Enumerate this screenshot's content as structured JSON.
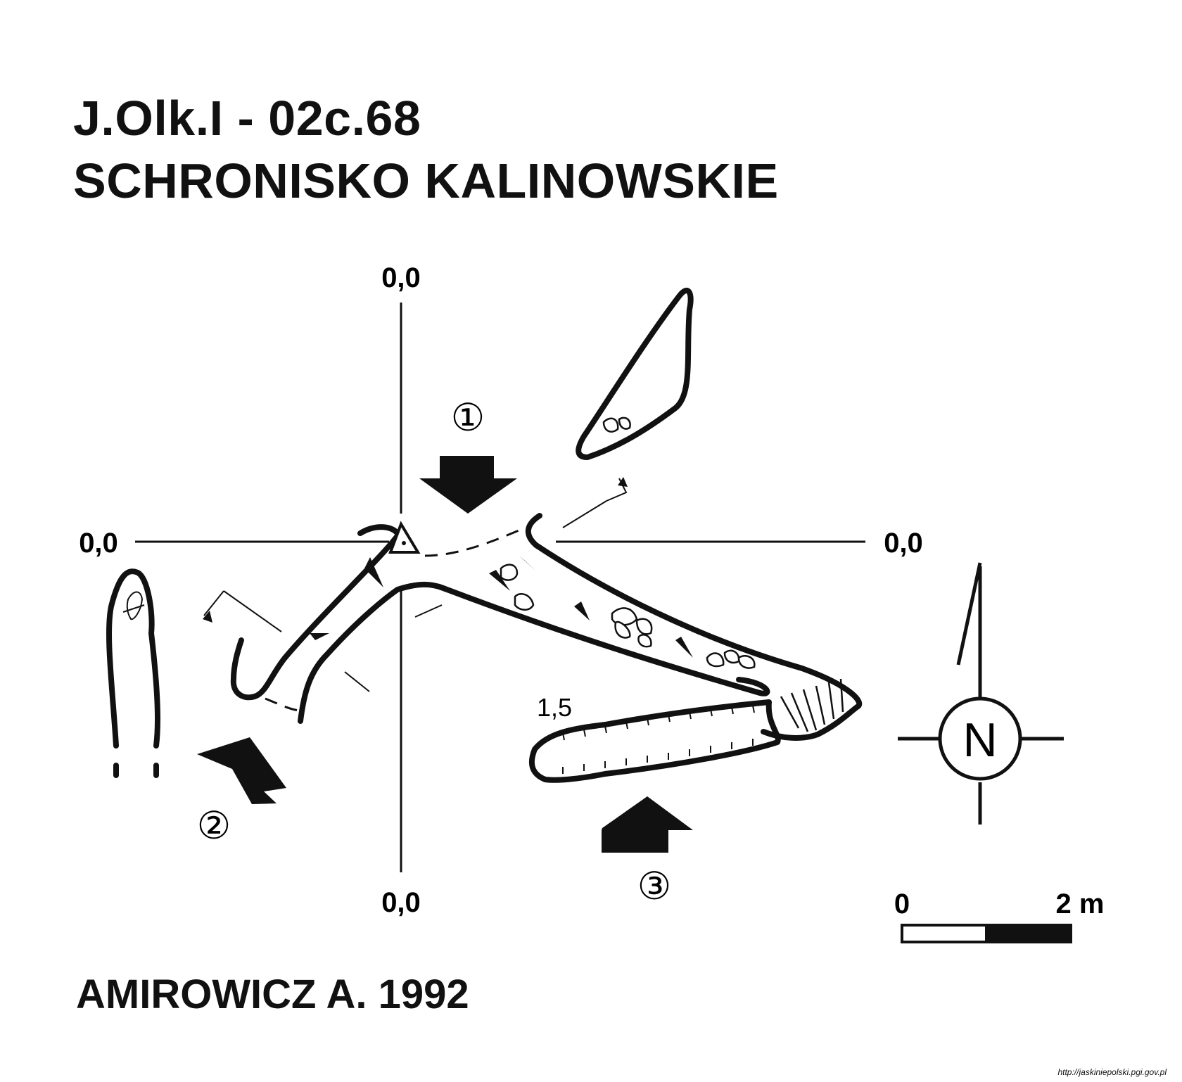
{
  "header": {
    "cave_id": "J.Olk.I - 02c.68",
    "cave_name": "SCHRONISKO KALINOWSKIE"
  },
  "cross_section_labels": {
    "top": "0,0",
    "bottom": "0,0",
    "left": "0,0",
    "right": "0,0"
  },
  "section_markers": [
    "①",
    "②",
    "③"
  ],
  "depth_label": "1,5",
  "compass": {
    "label": "N"
  },
  "scale_bar": {
    "start": "0",
    "end": "2 m"
  },
  "author": "AMIROWICZ A. 1992",
  "source_url": "http://jaskiniepolski.pgi.gov.pl",
  "colors": {
    "ink": "#111111",
    "background": "#ffffff"
  }
}
